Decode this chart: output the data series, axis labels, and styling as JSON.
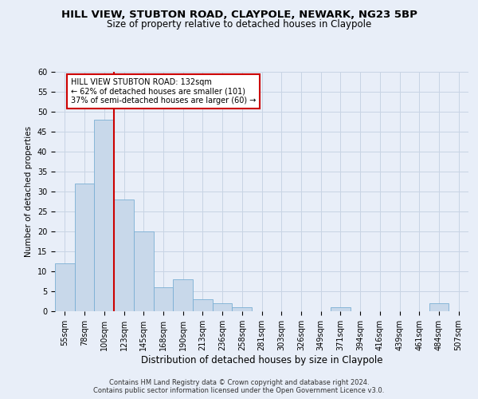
{
  "title": "HILL VIEW, STUBTON ROAD, CLAYPOLE, NEWARK, NG23 5BP",
  "subtitle": "Size of property relative to detached houses in Claypole",
  "xlabel": "Distribution of detached houses by size in Claypole",
  "ylabel": "Number of detached properties",
  "categories": [
    "55sqm",
    "78sqm",
    "100sqm",
    "123sqm",
    "145sqm",
    "168sqm",
    "190sqm",
    "213sqm",
    "236sqm",
    "258sqm",
    "281sqm",
    "303sqm",
    "326sqm",
    "349sqm",
    "371sqm",
    "394sqm",
    "416sqm",
    "439sqm",
    "461sqm",
    "484sqm",
    "507sqm"
  ],
  "values": [
    12,
    32,
    48,
    28,
    20,
    6,
    8,
    3,
    2,
    1,
    0,
    0,
    0,
    0,
    1,
    0,
    0,
    0,
    0,
    2,
    0
  ],
  "bar_color": "#c8d8ea",
  "bar_edge_color": "#7aafd4",
  "bar_edge_width": 0.6,
  "grid_color": "#c8d4e4",
  "background_color": "#e8eef8",
  "fig_background": "#e8eef8",
  "vline_x_index": 2,
  "vline_color": "#cc0000",
  "annotation_text": "HILL VIEW STUBTON ROAD: 132sqm\n← 62% of detached houses are smaller (101)\n37% of semi-detached houses are larger (60) →",
  "annotation_box_color": "#cc0000",
  "ylim": [
    0,
    60
  ],
  "yticks": [
    0,
    5,
    10,
    15,
    20,
    25,
    30,
    35,
    40,
    45,
    50,
    55,
    60
  ],
  "footer": "Contains HM Land Registry data © Crown copyright and database right 2024.\nContains public sector information licensed under the Open Government Licence v3.0.",
  "title_fontsize": 9.5,
  "subtitle_fontsize": 8.5,
  "xlabel_fontsize": 8.5,
  "ylabel_fontsize": 7.5,
  "tick_fontsize": 7,
  "annotation_fontsize": 7,
  "footer_fontsize": 6
}
